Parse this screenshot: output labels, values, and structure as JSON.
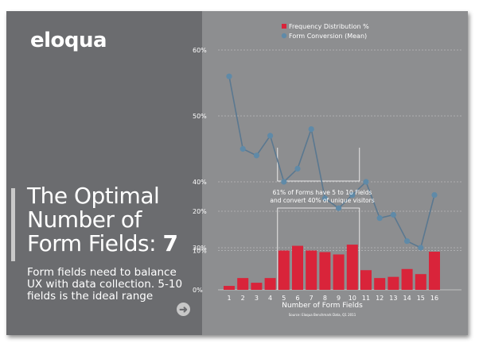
{
  "brand": {
    "logo_text": "eloqua"
  },
  "headline": {
    "line1": "The Optimal",
    "line2": "Number of",
    "line3_prefix": "Form Fields:",
    "line3_number": "7"
  },
  "subtext": "Form fields need to balance UX with data collection. 5-10 fields is the ideal range",
  "icons": {
    "next": "arrow-right-icon"
  },
  "colors": {
    "bar": "#d9243a",
    "line": "#5a7890",
    "marker": "#5f8aa8",
    "panel": "#6b6c6f",
    "chart_bg": "#8d8e90"
  },
  "chart_data": [
    {
      "type": "line",
      "legend_entry": "Form Conversion (Mean)",
      "x": [
        1,
        2,
        3,
        4,
        5,
        6,
        7,
        8,
        9,
        10,
        11,
        12,
        13,
        14,
        15,
        16
      ],
      "values": [
        56,
        45,
        44,
        47,
        40,
        42,
        48,
        37.5,
        36,
        38,
        40,
        34.5,
        35,
        31,
        30,
        38
      ],
      "y_ticks": [
        "60%",
        "50%",
        "40%",
        "30%"
      ],
      "ylim": [
        30,
        60
      ]
    },
    {
      "type": "bar",
      "legend_entry": "Frequency Distribution %",
      "categories": [
        "1",
        "2",
        "3",
        "4",
        "5",
        "6",
        "7",
        "8",
        "9",
        "10",
        "11",
        "12",
        "13",
        "14",
        "15",
        "16"
      ],
      "values": [
        1,
        3,
        1.8,
        3,
        10,
        11.2,
        10,
        9.6,
        9,
        11.5,
        5,
        3,
        3.3,
        5.3,
        4,
        9.7
      ],
      "y_ticks": [
        "20%",
        "10%",
        "0%"
      ],
      "ylim": [
        0,
        20
      ],
      "xlabel": "Number of Form Fields",
      "annotation": [
        "61% of Forms have 5 to 10 Fields",
        "and convert 40% of unique visitors"
      ],
      "source": "Source: Eloqua Benchmark Data, Q1 2011"
    }
  ]
}
